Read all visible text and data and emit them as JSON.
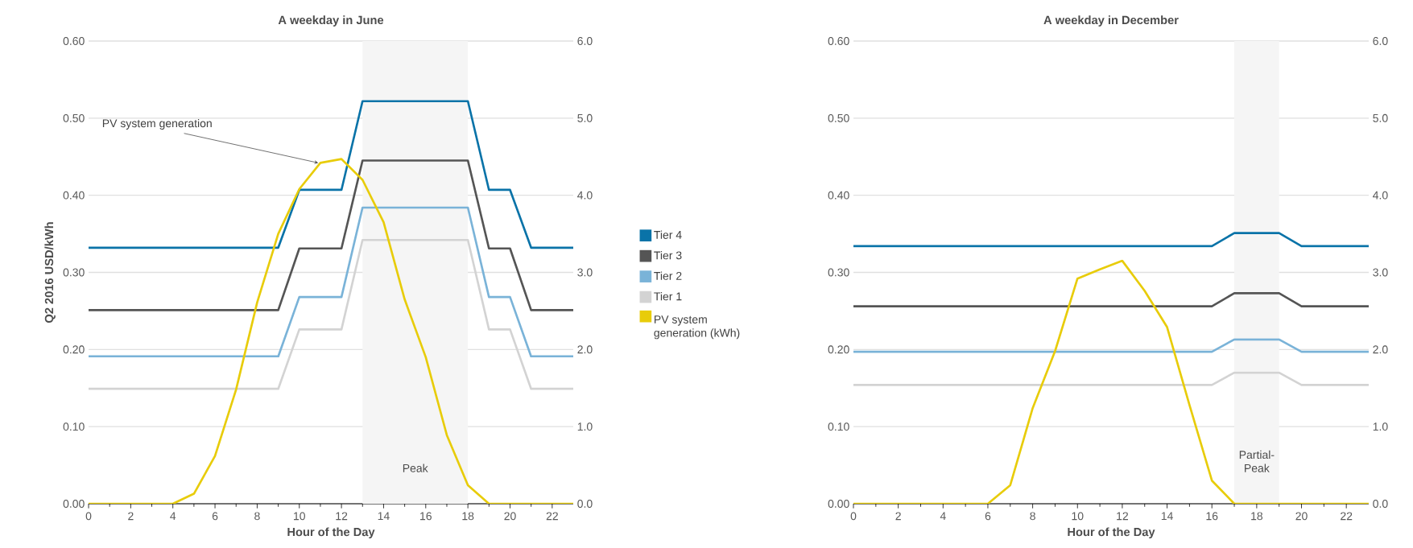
{
  "chart_data": [
    {
      "type": "line",
      "title": "A weekday in June",
      "xlabel": "Hour of the Day",
      "ylabel": "Q2 2016 USD/kWh",
      "x": [
        0,
        1,
        2,
        3,
        4,
        5,
        6,
        7,
        8,
        9,
        10,
        11,
        12,
        13,
        14,
        15,
        16,
        17,
        18,
        19,
        20,
        21,
        22,
        23
      ],
      "xlim": [
        0,
        23
      ],
      "xticks": [
        0,
        2,
        4,
        6,
        8,
        10,
        12,
        14,
        16,
        18,
        20,
        22
      ],
      "ylim": [
        0,
        0.6
      ],
      "yticks": [
        {
          "value": 0,
          "label": "0.00"
        },
        {
          "value": 0.1,
          "label": "0.10"
        },
        {
          "value": 0.2,
          "label": "0.20"
        },
        {
          "value": 0.3,
          "label": "0.30"
        },
        {
          "value": 0.4,
          "label": "0.40"
        },
        {
          "value": 0.5,
          "label": "0.50"
        },
        {
          "value": 0.6,
          "label": "0.60"
        }
      ],
      "y2lim": [
        0,
        6
      ],
      "y2ticks": [
        {
          "value": 0,
          "label": "0.0"
        },
        {
          "value": 1,
          "label": "1.0"
        },
        {
          "value": 2,
          "label": "2.0"
        },
        {
          "value": 3,
          "label": "3.0"
        },
        {
          "value": 4,
          "label": "4.0"
        },
        {
          "value": 5,
          "label": "5.0"
        },
        {
          "value": 6,
          "label": "6.0"
        }
      ],
      "grid": "y",
      "legend": "right",
      "series": [
        {
          "name": "Tier 4",
          "color": "#0a73a8",
          "values": [
            0.332,
            0.332,
            0.332,
            0.332,
            0.332,
            0.332,
            0.332,
            0.332,
            0.332,
            0.332,
            0.407,
            0.407,
            0.407,
            0.522,
            0.522,
            0.522,
            0.522,
            0.522,
            0.522,
            0.407,
            0.407,
            0.332,
            0.332,
            0.332
          ]
        },
        {
          "name": "Tier 3",
          "color": "#555555",
          "values": [
            0.251,
            0.251,
            0.251,
            0.251,
            0.251,
            0.251,
            0.251,
            0.251,
            0.251,
            0.251,
            0.331,
            0.331,
            0.331,
            0.445,
            0.445,
            0.445,
            0.445,
            0.445,
            0.445,
            0.331,
            0.331,
            0.251,
            0.251,
            0.251
          ]
        },
        {
          "name": "Tier 2",
          "color": "#7ab3d8",
          "values": [
            0.191,
            0.191,
            0.191,
            0.191,
            0.191,
            0.191,
            0.191,
            0.191,
            0.191,
            0.191,
            0.268,
            0.268,
            0.268,
            0.384,
            0.384,
            0.384,
            0.384,
            0.384,
            0.384,
            0.268,
            0.268,
            0.191,
            0.191,
            0.191
          ]
        },
        {
          "name": "Tier 1",
          "color": "#d3d3d3",
          "values": [
            0.149,
            0.149,
            0.149,
            0.149,
            0.149,
            0.149,
            0.149,
            0.149,
            0.149,
            0.149,
            0.226,
            0.226,
            0.226,
            0.342,
            0.342,
            0.342,
            0.342,
            0.342,
            0.342,
            0.226,
            0.226,
            0.149,
            0.149,
            0.149
          ]
        },
        {
          "name": "PV system generation (kWh)",
          "color": "#e8cc0a",
          "axis": "y2",
          "values": [
            0,
            0,
            0,
            0,
            0,
            0.13,
            0.62,
            1.48,
            2.61,
            3.5,
            4.08,
            4.42,
            4.47,
            4.2,
            3.65,
            2.65,
            1.9,
            0.89,
            0.24,
            0,
            0,
            0,
            0,
            0
          ]
        }
      ],
      "bands": [
        {
          "axis": "x",
          "from": 13,
          "to": 18,
          "label": "Peak",
          "color": "#f5f5f5"
        }
      ],
      "annotations": [
        {
          "text": "PV system generation",
          "x": 11,
          "y": 0.442
        }
      ]
    },
    {
      "type": "line",
      "title": "A weekday in December",
      "xlabel": "Hour of the Day",
      "x": [
        0,
        1,
        2,
        3,
        4,
        5,
        6,
        7,
        8,
        9,
        10,
        11,
        12,
        13,
        14,
        15,
        16,
        17,
        18,
        19,
        20,
        21,
        22,
        23
      ],
      "xlim": [
        0,
        23
      ],
      "xticks": [
        0,
        2,
        4,
        6,
        8,
        10,
        12,
        14,
        16,
        18,
        20,
        22
      ],
      "ylim": [
        0,
        0.6
      ],
      "yticks": [
        {
          "value": 0,
          "label": "0.00"
        },
        {
          "value": 0.1,
          "label": "0.10"
        },
        {
          "value": 0.2,
          "label": "0.20"
        },
        {
          "value": 0.3,
          "label": "0.30"
        },
        {
          "value": 0.4,
          "label": "0.40"
        },
        {
          "value": 0.5,
          "label": "0.50"
        },
        {
          "value": 0.6,
          "label": "0.60"
        }
      ],
      "y2lim": [
        0,
        6
      ],
      "y2ticks": [
        {
          "value": 0,
          "label": "0.0"
        },
        {
          "value": 1,
          "label": "1.0"
        },
        {
          "value": 2,
          "label": "2.0"
        },
        {
          "value": 3,
          "label": "3.0"
        },
        {
          "value": 4,
          "label": "4.0"
        },
        {
          "value": 5,
          "label": "5.0"
        },
        {
          "value": 6,
          "label": "6.0"
        }
      ],
      "grid": "y",
      "series": [
        {
          "color": "#0a73a8",
          "values": [
            0.334,
            0.334,
            0.334,
            0.334,
            0.334,
            0.334,
            0.334,
            0.334,
            0.334,
            0.334,
            0.334,
            0.334,
            0.334,
            0.334,
            0.334,
            0.334,
            0.334,
            0.351,
            0.351,
            0.351,
            0.334,
            0.334,
            0.334,
            0.334
          ]
        },
        {
          "color": "#555555",
          "values": [
            0.256,
            0.256,
            0.256,
            0.256,
            0.256,
            0.256,
            0.256,
            0.256,
            0.256,
            0.256,
            0.256,
            0.256,
            0.256,
            0.256,
            0.256,
            0.256,
            0.256,
            0.273,
            0.273,
            0.273,
            0.256,
            0.256,
            0.256,
            0.256
          ]
        },
        {
          "color": "#7ab3d8",
          "values": [
            0.197,
            0.197,
            0.197,
            0.197,
            0.197,
            0.197,
            0.197,
            0.197,
            0.197,
            0.197,
            0.197,
            0.197,
            0.197,
            0.197,
            0.197,
            0.197,
            0.197,
            0.213,
            0.213,
            0.213,
            0.197,
            0.197,
            0.197,
            0.197
          ]
        },
        {
          "color": "#d3d3d3",
          "values": [
            0.154,
            0.154,
            0.154,
            0.154,
            0.154,
            0.154,
            0.154,
            0.154,
            0.154,
            0.154,
            0.154,
            0.154,
            0.154,
            0.154,
            0.154,
            0.154,
            0.154,
            0.17,
            0.17,
            0.17,
            0.154,
            0.154,
            0.154,
            0.154
          ]
        },
        {
          "color": "#e8cc0a",
          "axis": "y2",
          "values": [
            0,
            0,
            0,
            0,
            0,
            0,
            0,
            0.24,
            1.24,
            1.98,
            2.92,
            3.04,
            3.15,
            2.76,
            2.29,
            1.28,
            0.3,
            0,
            0,
            0,
            0,
            0,
            0,
            0
          ]
        }
      ],
      "bands": [
        {
          "axis": "x",
          "from": 17,
          "to": 19,
          "label": "Partial-Peak",
          "color": "#f5f5f5"
        }
      ]
    }
  ]
}
